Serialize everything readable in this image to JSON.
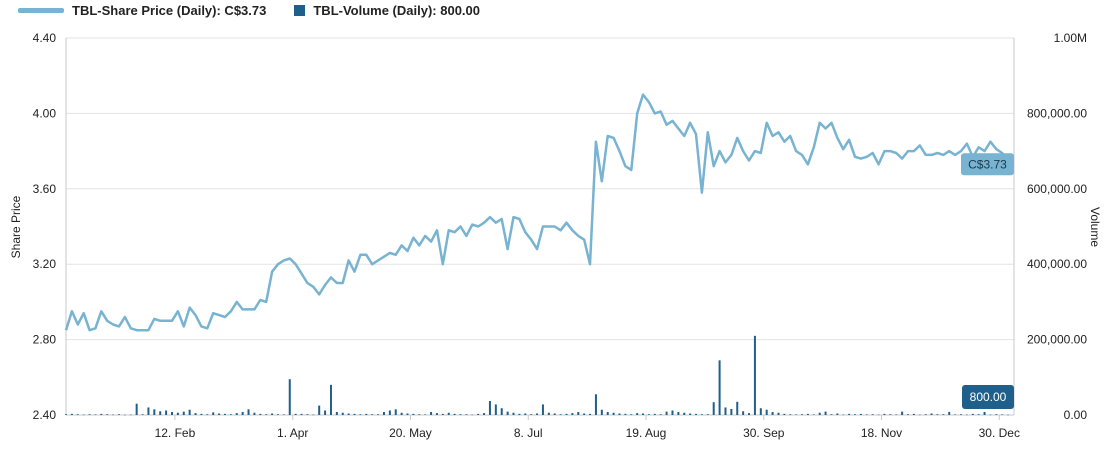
{
  "legend": {
    "price_label": "TBL-Share Price (Daily): C$3.73",
    "volume_label": "TBL-Volume (Daily): 800.00"
  },
  "colors": {
    "price": "#78b3d1",
    "volume": "#1f5f8b",
    "grid": "#e3e3e3",
    "axis": "#c9c9c9"
  },
  "chart_data": {
    "type": "line",
    "title": "",
    "xlabel": "",
    "ylabel": "Share Price",
    "y2label": "Volume",
    "ylim": [
      2.4,
      4.4
    ],
    "y2lim": [
      0,
      1000000
    ],
    "y_ticks": [
      "2.40",
      "2.80",
      "3.20",
      "3.60",
      "4.00",
      "4.40"
    ],
    "y2_ticks": [
      "0.00",
      "200,000.00",
      "400,000.00",
      "600,000.00",
      "800,000.00",
      "1.00M"
    ],
    "x_ticks": [
      "12. Feb",
      "1. Apr",
      "20. May",
      "8. Jul",
      "19. Aug",
      "30. Sep",
      "18. Nov",
      "30. Dec"
    ],
    "x_tick_positions": [
      18.5,
      38.5,
      58.5,
      78.5,
      98.5,
      118.5,
      138.5,
      158.5
    ],
    "x_range": [
      0,
      161
    ],
    "grid": true,
    "legend_position": "top-left",
    "last_price_label": "C$3.73",
    "last_volume_label": "800.00",
    "series": [
      {
        "name": "TBL-Share Price (Daily)",
        "axis": "left",
        "values": [
          2.85,
          2.95,
          2.88,
          2.94,
          2.85,
          2.86,
          2.95,
          2.9,
          2.88,
          2.87,
          2.92,
          2.86,
          2.85,
          2.85,
          2.85,
          2.91,
          2.9,
          2.9,
          2.9,
          2.95,
          2.87,
          2.97,
          2.93,
          2.87,
          2.86,
          2.94,
          2.93,
          2.92,
          2.95,
          3.0,
          2.96,
          2.96,
          2.96,
          3.01,
          3.0,
          3.16,
          3.2,
          3.22,
          3.23,
          3.2,
          3.15,
          3.1,
          3.08,
          3.04,
          3.09,
          3.13,
          3.1,
          3.1,
          3.22,
          3.16,
          3.25,
          3.25,
          3.2,
          3.22,
          3.24,
          3.26,
          3.25,
          3.3,
          3.27,
          3.34,
          3.3,
          3.35,
          3.32,
          3.38,
          3.2,
          3.38,
          3.37,
          3.4,
          3.35,
          3.41,
          3.4,
          3.42,
          3.45,
          3.42,
          3.44,
          3.28,
          3.45,
          3.44,
          3.37,
          3.33,
          3.28,
          3.4,
          3.4,
          3.4,
          3.38,
          3.42,
          3.38,
          3.35,
          3.33,
          3.2,
          3.85,
          3.64,
          3.88,
          3.87,
          3.8,
          3.72,
          3.7,
          4.0,
          4.1,
          4.06,
          4.0,
          4.01,
          3.94,
          3.96,
          3.92,
          3.88,
          3.95,
          3.89,
          3.58,
          3.9,
          3.72,
          3.8,
          3.74,
          3.78,
          3.87,
          3.8,
          3.75,
          3.8,
          3.79,
          3.95,
          3.88,
          3.9,
          3.85,
          3.88,
          3.8,
          3.78,
          3.73,
          3.82,
          3.95,
          3.92,
          3.95,
          3.87,
          3.81,
          3.86,
          3.77,
          3.76,
          3.77,
          3.79,
          3.73,
          3.8,
          3.8,
          3.79,
          3.76,
          3.8,
          3.8,
          3.83,
          3.78,
          3.78,
          3.79,
          3.78,
          3.8,
          3.78,
          3.8,
          3.84,
          3.77,
          3.82,
          3.8,
          3.85,
          3.81,
          3.79,
          3.73
        ],
        "color_key": "price"
      },
      {
        "name": "TBL-Volume (Daily)",
        "axis": "right",
        "values": [
          2000,
          3000,
          2000,
          1000,
          2000,
          1500,
          3000,
          2000,
          1000,
          2000,
          800,
          1000,
          30000,
          2000,
          20000,
          15000,
          10000,
          12000,
          8000,
          6000,
          9000,
          14000,
          5000,
          3000,
          2000,
          7000,
          4000,
          3000,
          2000,
          5000,
          8000,
          15000,
          6000,
          3000,
          2000,
          4000,
          2000,
          1500,
          95000,
          3000,
          3000,
          2000,
          1000,
          25000,
          12000,
          80000,
          8000,
          6000,
          4000,
          3000,
          2000,
          3000,
          2000,
          2000,
          8000,
          12000,
          15000,
          6000,
          4000,
          3000,
          2000,
          1500,
          8000,
          5000,
          3000,
          6000,
          3000,
          2000,
          2000,
          1000,
          3000,
          5000,
          37000,
          28000,
          18000,
          9000,
          6000,
          3000,
          4000,
          2000,
          4000,
          28000,
          6000,
          4000,
          2000,
          3000,
          5000,
          8000,
          4000,
          3000,
          55000,
          14000,
          8000,
          6000,
          4000,
          3000,
          2000,
          5000,
          4000,
          2000,
          3000,
          2000,
          9000,
          12000,
          8000,
          6000,
          4000,
          3000,
          2000,
          2000,
          34000,
          145000,
          20000,
          16000,
          35000,
          10000,
          5000,
          210000,
          18000,
          14000,
          8000,
          6000,
          3000,
          2000,
          1500,
          2000,
          3000,
          1500,
          6000,
          9000,
          2000,
          4000,
          1000,
          3000,
          2000,
          3000,
          1500,
          2000,
          1000,
          3000,
          2000,
          1500,
          9000,
          2000,
          3000,
          1000,
          2000,
          4000,
          2000,
          2000,
          8000,
          1500,
          2000,
          1000,
          3000,
          2000,
          8000,
          1000,
          2000,
          1500,
          800
        ]
      }
    ]
  }
}
